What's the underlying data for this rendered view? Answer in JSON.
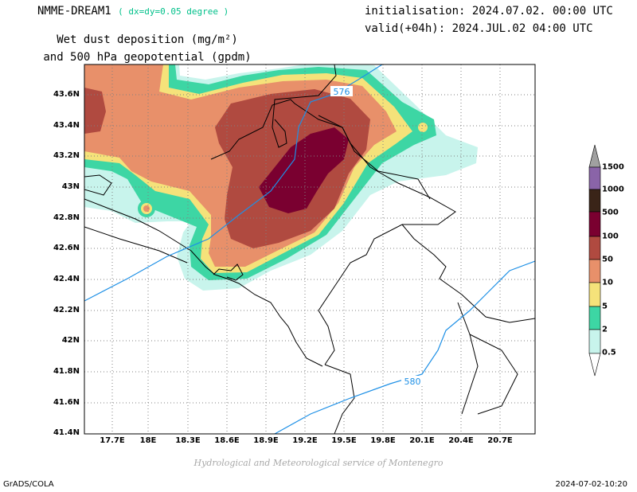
{
  "header": {
    "model": "NMME-DREAM1",
    "resolution": "( dx=dy=0.05 degree )",
    "init": "initialisation: 2024.07.02. 00:00 UTC",
    "valid": "valid(+04h): 2024.JUL.02 04:00 UTC",
    "var_line1": "Wet dust deposition (mg/m²)",
    "var_line2": "and 500 hPa geopotential (gpdm)"
  },
  "axes": {
    "lat_labels": [
      "43.6N",
      "43.4N",
      "43.2N",
      "43N",
      "42.8N",
      "42.6N",
      "42.4N",
      "42.2N",
      "42N",
      "41.8N",
      "41.6N",
      "41.4N"
    ],
    "lon_labels": [
      "17.7E",
      "18E",
      "18.3E",
      "18.6E",
      "18.9E",
      "19.2E",
      "19.5E",
      "19.8E",
      "20.1E",
      "20.4E",
      "20.7E"
    ]
  },
  "contours": [
    {
      "label": "576",
      "color": "#1e90e6"
    },
    {
      "label": "580",
      "color": "#1e90e6"
    }
  ],
  "legend": {
    "levels": [
      "1500",
      "1000",
      "500",
      "100",
      "50",
      "10",
      "5",
      "2",
      "0.5"
    ],
    "colors": [
      "#a0a0a0",
      "#8a64a8",
      "#3a2418",
      "#7a0030",
      "#b04a40",
      "#e8906a",
      "#f5e27a",
      "#3dd6a4",
      "#c8f4ec"
    ]
  },
  "credit": "Hydrological and Meteorological service of Montenegro",
  "footer": {
    "left": "GrADS/COLA",
    "right": "2024-07-02-10:20"
  }
}
